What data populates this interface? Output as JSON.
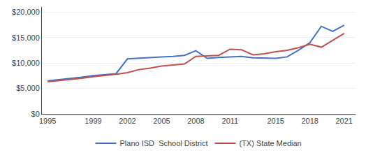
{
  "chart_data": {
    "type": "line",
    "x": [
      1995,
      1996,
      1997,
      1998,
      1999,
      2000,
      2001,
      2002,
      2003,
      2004,
      2005,
      2006,
      2007,
      2008,
      2009,
      2010,
      2011,
      2012,
      2013,
      2014,
      2015,
      2016,
      2017,
      2018,
      2019,
      2020,
      2021
    ],
    "series": [
      {
        "name": "Plano ISD  School District",
        "color": "#4472C4",
        "values": [
          6500,
          6700,
          6900,
          7200,
          7500,
          7700,
          7900,
          10800,
          10900,
          11000,
          11200,
          11300,
          11500,
          12400,
          10900,
          11100,
          11200,
          11300,
          11000,
          11000,
          10900,
          11200,
          12500,
          14000,
          17200,
          16200,
          17400
        ]
      },
      {
        "name": "(TX) State Median",
        "color": "#C0504D",
        "values": [
          6300,
          6500,
          6700,
          7000,
          7300,
          7500,
          7800,
          8100,
          8700,
          9000,
          9400,
          9600,
          9800,
          11300,
          11400,
          11500,
          12700,
          12600,
          11600,
          11800,
          12200,
          12500,
          13000,
          13700,
          13100,
          14500,
          15800
        ]
      }
    ],
    "xlim": [
      1994.5,
      2022
    ],
    "xticks": [
      1995,
      1999,
      2002,
      2005,
      2008,
      2011,
      2015,
      2018,
      2021
    ],
    "ylim": [
      0,
      21000
    ],
    "yticks": [
      {
        "value": 0,
        "label": "$0"
      },
      {
        "value": 5000,
        "label": "$5,000"
      },
      {
        "value": 10000,
        "label": "$10,000"
      },
      {
        "value": 15000,
        "label": "$15,000"
      },
      {
        "value": 20000,
        "label": "$20,000"
      }
    ],
    "grid": "y",
    "legend": "bottom"
  }
}
